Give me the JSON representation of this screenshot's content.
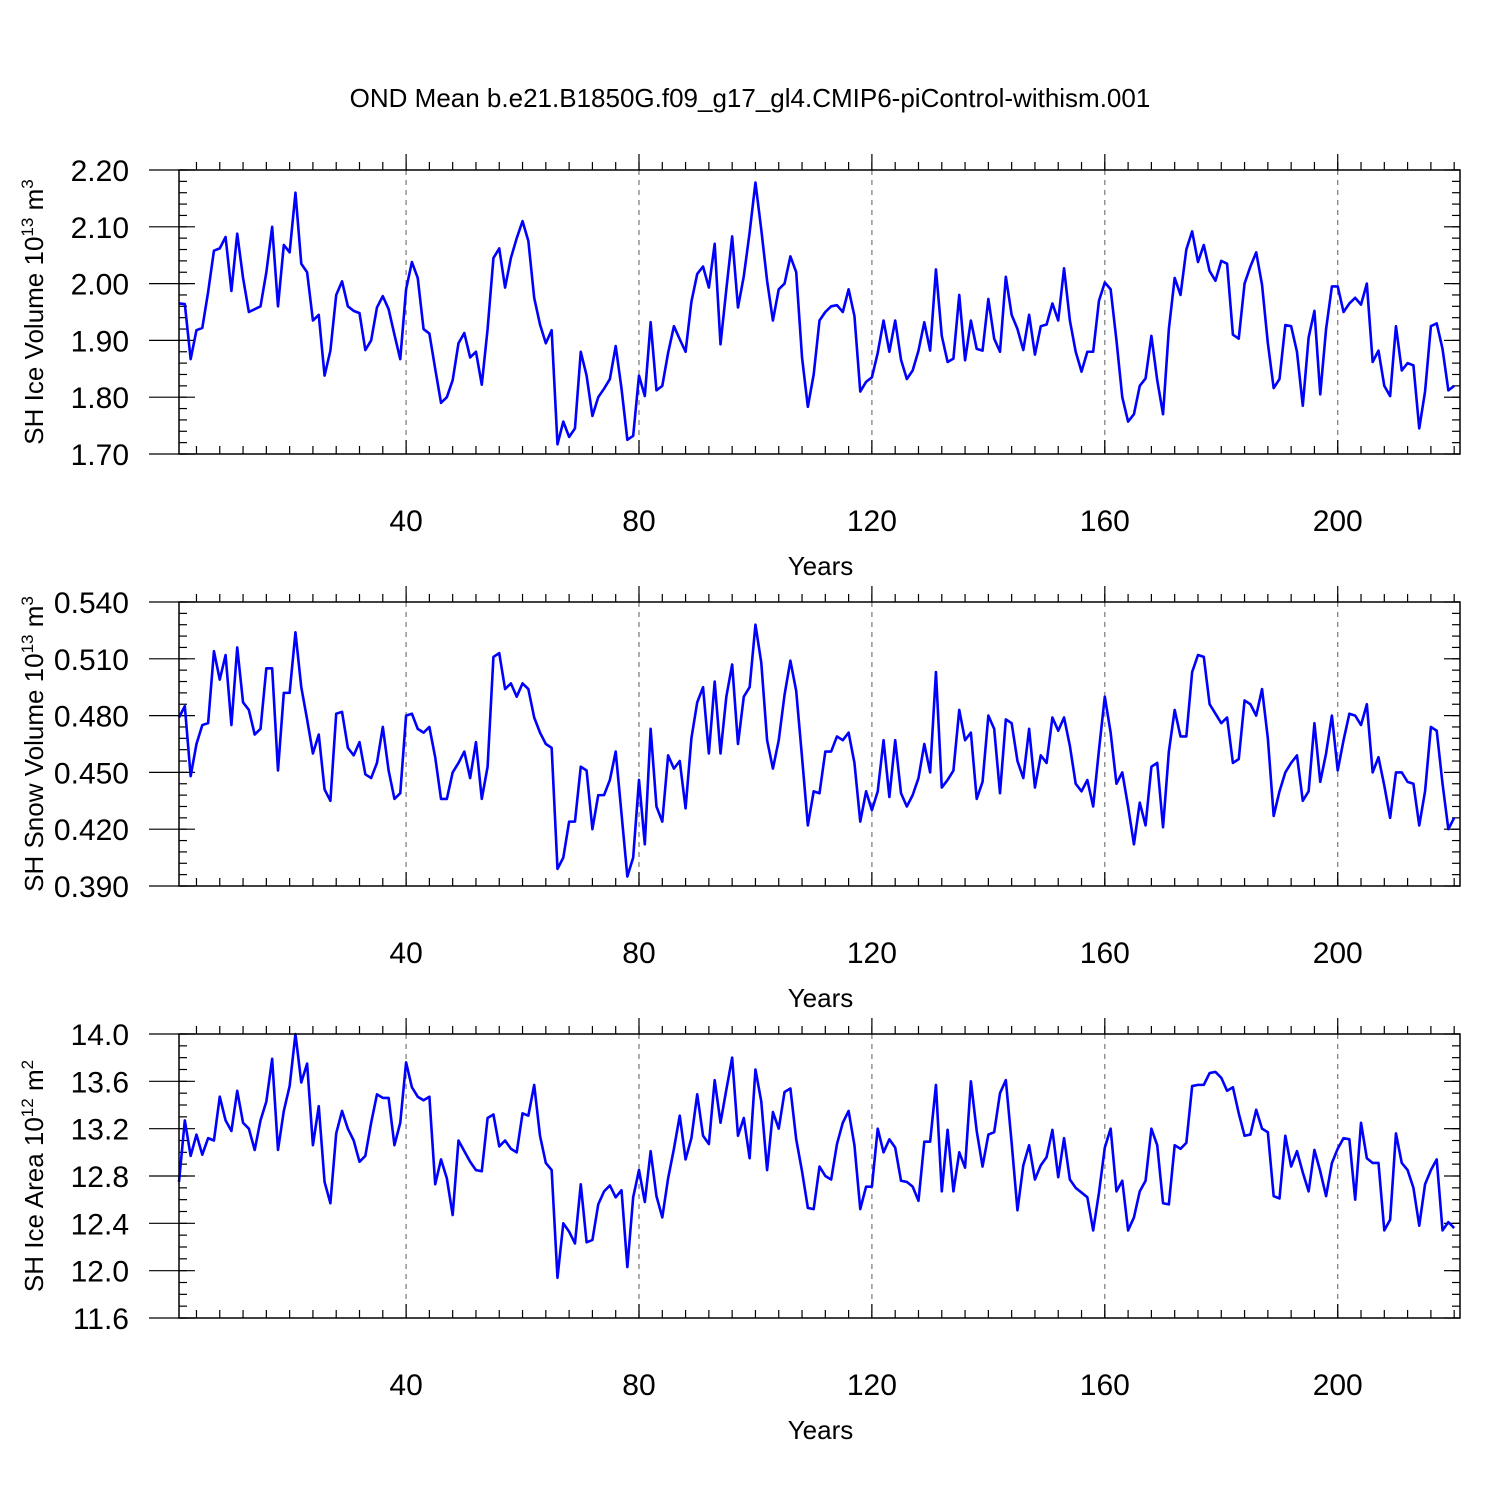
{
  "title": "OND Mean b.e21.B1850G.f09_g17_gl4.CMIP6-piControl-withism.001",
  "chart_data": [
    {
      "type": "line",
      "id": "ice-volume",
      "ylabel_main": "SH Ice Volume 10",
      "ylabel_exp": "13",
      "ylabel_unit": " m",
      "ylabel_unit_exp": "3",
      "xlabel": "Years",
      "xlim": [
        1,
        221
      ],
      "ylim": [
        1.7,
        2.2
      ],
      "xticks": [
        40,
        80,
        120,
        160,
        200
      ],
      "xtick_labels": [
        "40",
        "80",
        "120",
        "160",
        "200"
      ],
      "yticks": [
        1.7,
        1.8,
        1.9,
        2.0,
        2.1,
        2.2
      ],
      "ytick_labels": [
        "1.70",
        "1.80",
        "1.90",
        "2.00",
        "2.10",
        "2.20"
      ],
      "ystep_minor": 0.02,
      "grid": "vertical dashed at major x ticks",
      "series": [
        {
          "name": "SH Ice Volume",
          "color": "#0000ff",
          "x_start": 1,
          "values": [
            1.965,
            1.964,
            1.867,
            1.918,
            1.922,
            1.985,
            2.058,
            2.062,
            2.082,
            1.987,
            2.088,
            2.01,
            1.95,
            1.955,
            1.96,
            2.02,
            2.1,
            1.96,
            2.068,
            2.055,
            2.16,
            2.035,
            2.02,
            1.935,
            1.945,
            1.838,
            1.882,
            1.98,
            2.004,
            1.96,
            1.952,
            1.948,
            1.883,
            1.9,
            1.958,
            1.978,
            1.955,
            1.91,
            1.867,
            1.99,
            2.038,
            2.01,
            1.92,
            1.912,
            1.85,
            1.79,
            1.8,
            1.83,
            1.895,
            1.913,
            1.87,
            1.88,
            1.822,
            1.92,
            2.045,
            2.062,
            1.993,
            2.045,
            2.08,
            2.11,
            2.075,
            1.975,
            1.928,
            1.895,
            1.918,
            1.717,
            1.757,
            1.73,
            1.745,
            1.88,
            1.838,
            1.767,
            1.8,
            1.815,
            1.832,
            1.89,
            1.815,
            1.725,
            1.732,
            1.838,
            1.802,
            1.932,
            1.812,
            1.82,
            1.878,
            1.925,
            1.902,
            1.88,
            1.968,
            2.017,
            2.03,
            1.993,
            2.07,
            1.893,
            1.99,
            2.083,
            1.958,
            2.013,
            2.09,
            2.178,
            2.095,
            2.005,
            1.935,
            1.99,
            2.0,
            2.048,
            2.02,
            1.87,
            1.783,
            1.84,
            1.935,
            1.95,
            1.96,
            1.962,
            1.95,
            1.99,
            1.943,
            1.81,
            1.827,
            1.835,
            1.878,
            1.935,
            1.88,
            1.935,
            1.866,
            1.832,
            1.847,
            1.882,
            1.932,
            1.882,
            2.025,
            1.908,
            1.862,
            1.868,
            1.98,
            1.865,
            1.935,
            1.885,
            1.882,
            1.973,
            1.903,
            1.88,
            2.012,
            1.945,
            1.92,
            1.883,
            1.945,
            1.875,
            1.925,
            1.928,
            1.965,
            1.935,
            2.027,
            1.935,
            1.88,
            1.845,
            1.88,
            1.88,
            1.97,
            2.002,
            1.99,
            1.9,
            1.8,
            1.757,
            1.77,
            1.82,
            1.833,
            1.908,
            1.83,
            1.77,
            1.92,
            2.01,
            1.98,
            2.06,
            2.092,
            2.038,
            2.068,
            2.022,
            2.005,
            2.04,
            2.035,
            1.91,
            1.903,
            2.0,
            2.03,
            2.055,
            1.998,
            1.895,
            1.816,
            1.832,
            1.927,
            1.925,
            1.88,
            1.785,
            1.905,
            1.952,
            1.805,
            1.92,
            1.995,
            1.995,
            1.95,
            1.965,
            1.975,
            1.963,
            2.0,
            1.862,
            1.882,
            1.82,
            1.802,
            1.925,
            1.847,
            1.86,
            1.856,
            1.745,
            1.81,
            1.925,
            1.93,
            1.885,
            1.812,
            1.82
          ]
        }
      ]
    },
    {
      "type": "line",
      "id": "snow-volume",
      "ylabel_main": "SH Snow Volume 10",
      "ylabel_exp": "13",
      "ylabel_unit": " m",
      "ylabel_unit_exp": "3",
      "xlabel": "Years",
      "xlim": [
        1,
        221
      ],
      "ylim": [
        0.39,
        0.54
      ],
      "xticks": [
        40,
        80,
        120,
        160,
        200
      ],
      "xtick_labels": [
        "40",
        "80",
        "120",
        "160",
        "200"
      ],
      "yticks": [
        0.39,
        0.42,
        0.45,
        0.48,
        0.51,
        0.54
      ],
      "ytick_labels": [
        "0.390",
        "0.420",
        "0.450",
        "0.480",
        "0.510",
        "0.540"
      ],
      "ystep_minor": 0.006,
      "grid": "vertical dashed at major x ticks",
      "series": [
        {
          "name": "SH Snow Volume",
          "color": "#0000ff",
          "x_start": 1,
          "values": [
            0.479,
            0.485,
            0.448,
            0.465,
            0.475,
            0.476,
            0.514,
            0.499,
            0.512,
            0.475,
            0.516,
            0.487,
            0.483,
            0.47,
            0.473,
            0.505,
            0.505,
            0.451,
            0.492,
            0.492,
            0.524,
            0.495,
            0.478,
            0.46,
            0.47,
            0.441,
            0.435,
            0.481,
            0.482,
            0.463,
            0.459,
            0.466,
            0.449,
            0.447,
            0.455,
            0.474,
            0.451,
            0.436,
            0.439,
            0.48,
            0.481,
            0.473,
            0.471,
            0.474,
            0.458,
            0.436,
            0.436,
            0.45,
            0.455,
            0.461,
            0.447,
            0.466,
            0.436,
            0.453,
            0.511,
            0.513,
            0.494,
            0.497,
            0.49,
            0.497,
            0.494,
            0.479,
            0.471,
            0.465,
            0.463,
            0.399,
            0.405,
            0.424,
            0.424,
            0.453,
            0.451,
            0.42,
            0.438,
            0.438,
            0.446,
            0.461,
            0.428,
            0.395,
            0.405,
            0.446,
            0.412,
            0.473,
            0.432,
            0.424,
            0.459,
            0.452,
            0.456,
            0.431,
            0.468,
            0.487,
            0.495,
            0.46,
            0.498,
            0.46,
            0.49,
            0.507,
            0.465,
            0.49,
            0.495,
            0.528,
            0.508,
            0.467,
            0.452,
            0.467,
            0.491,
            0.509,
            0.493,
            0.458,
            0.422,
            0.44,
            0.439,
            0.461,
            0.461,
            0.469,
            0.467,
            0.471,
            0.455,
            0.424,
            0.44,
            0.43,
            0.44,
            0.467,
            0.437,
            0.467,
            0.439,
            0.432,
            0.438,
            0.447,
            0.465,
            0.45,
            0.503,
            0.442,
            0.446,
            0.451,
            0.483,
            0.467,
            0.471,
            0.436,
            0.445,
            0.48,
            0.473,
            0.439,
            0.478,
            0.476,
            0.456,
            0.447,
            0.473,
            0.442,
            0.459,
            0.455,
            0.479,
            0.472,
            0.479,
            0.464,
            0.444,
            0.44,
            0.446,
            0.432,
            0.462,
            0.49,
            0.471,
            0.444,
            0.45,
            0.432,
            0.412,
            0.434,
            0.422,
            0.453,
            0.455,
            0.421,
            0.461,
            0.483,
            0.469,
            0.469,
            0.503,
            0.512,
            0.511,
            0.486,
            0.481,
            0.476,
            0.479,
            0.455,
            0.457,
            0.488,
            0.486,
            0.48,
            0.494,
            0.468,
            0.427,
            0.44,
            0.45,
            0.455,
            0.459,
            0.435,
            0.44,
            0.476,
            0.445,
            0.46,
            0.48,
            0.451,
            0.467,
            0.481,
            0.48,
            0.475,
            0.486,
            0.45,
            0.458,
            0.443,
            0.426,
            0.45,
            0.45,
            0.445,
            0.444,
            0.422,
            0.44,
            0.474,
            0.472,
            0.444,
            0.42,
            0.426
          ]
        }
      ]
    },
    {
      "type": "line",
      "id": "ice-area",
      "ylabel_main": "SH Ice Area 10",
      "ylabel_exp": "12",
      "ylabel_unit": " m",
      "ylabel_unit_exp": "2",
      "xlabel": "Years",
      "xlim": [
        1,
        221
      ],
      "ylim": [
        11.6,
        14.0
      ],
      "xticks": [
        40,
        80,
        120,
        160,
        200
      ],
      "xtick_labels": [
        "40",
        "80",
        "120",
        "160",
        "200"
      ],
      "yticks": [
        11.6,
        12.0,
        12.4,
        12.8,
        13.2,
        13.6,
        14.0
      ],
      "ytick_labels": [
        "11.6",
        "12.0",
        "12.4",
        "12.8",
        "13.2",
        "13.6",
        "14.0"
      ],
      "ystep_minor": 0.1,
      "grid": "vertical dashed at major x ticks",
      "series": [
        {
          "name": "SH Ice Area",
          "color": "#0000ff",
          "x_start": 1,
          "values": [
            12.75,
            13.27,
            12.97,
            13.15,
            12.98,
            13.12,
            13.1,
            13.47,
            13.27,
            13.18,
            13.52,
            13.25,
            13.2,
            13.02,
            13.27,
            13.43,
            13.79,
            13.02,
            13.35,
            13.56,
            14.0,
            13.59,
            13.75,
            13.06,
            13.39,
            12.75,
            12.57,
            13.16,
            13.35,
            13.2,
            13.1,
            12.92,
            12.97,
            13.25,
            13.49,
            13.46,
            13.46,
            13.06,
            13.25,
            13.76,
            13.55,
            13.47,
            13.44,
            13.47,
            12.73,
            12.94,
            12.78,
            12.47,
            13.1,
            13.01,
            12.92,
            12.85,
            12.84,
            13.29,
            13.32,
            13.05,
            13.1,
            13.03,
            13.0,
            13.33,
            13.31,
            13.57,
            13.14,
            12.91,
            12.85,
            11.94,
            12.4,
            12.33,
            12.23,
            12.73,
            12.24,
            12.26,
            12.56,
            12.67,
            12.72,
            12.62,
            12.68,
            12.03,
            12.62,
            12.85,
            12.58,
            13.01,
            12.63,
            12.45,
            12.78,
            13.03,
            13.31,
            12.94,
            13.12,
            13.49,
            13.14,
            13.07,
            13.61,
            13.25,
            13.53,
            13.8,
            13.14,
            13.29,
            12.95,
            13.7,
            13.43,
            12.85,
            13.34,
            13.2,
            13.51,
            13.54,
            13.11,
            12.84,
            12.53,
            12.52,
            12.88,
            12.8,
            12.77,
            13.07,
            13.25,
            13.35,
            13.06,
            12.52,
            12.71,
            12.71,
            13.2,
            13.0,
            13.11,
            13.04,
            12.76,
            12.75,
            12.71,
            12.59,
            13.09,
            13.09,
            13.57,
            12.67,
            13.19,
            12.67,
            13.0,
            12.87,
            13.6,
            13.18,
            12.88,
            13.15,
            13.17,
            13.5,
            13.61,
            13.08,
            12.51,
            12.89,
            13.06,
            12.77,
            12.89,
            12.96,
            13.19,
            12.79,
            13.12,
            12.77,
            12.7,
            12.66,
            12.62,
            12.34,
            12.66,
            13.04,
            13.2,
            12.67,
            12.76,
            12.34,
            12.45,
            12.67,
            12.76,
            13.2,
            13.06,
            12.57,
            12.56,
            13.06,
            13.03,
            13.08,
            13.56,
            13.57,
            13.57,
            13.67,
            13.68,
            13.63,
            13.52,
            13.55,
            13.33,
            13.14,
            13.15,
            13.36,
            13.2,
            13.17,
            12.63,
            12.61,
            13.14,
            12.88,
            13.01,
            12.83,
            12.67,
            13.02,
            12.84,
            12.63,
            12.91,
            13.03,
            13.12,
            13.11,
            12.6,
            13.25,
            12.95,
            12.91,
            12.91,
            12.34,
            12.43,
            13.16,
            12.91,
            12.85,
            12.7,
            12.38,
            12.73,
            12.85,
            12.94,
            12.34,
            12.41,
            12.36
          ]
        }
      ]
    }
  ]
}
